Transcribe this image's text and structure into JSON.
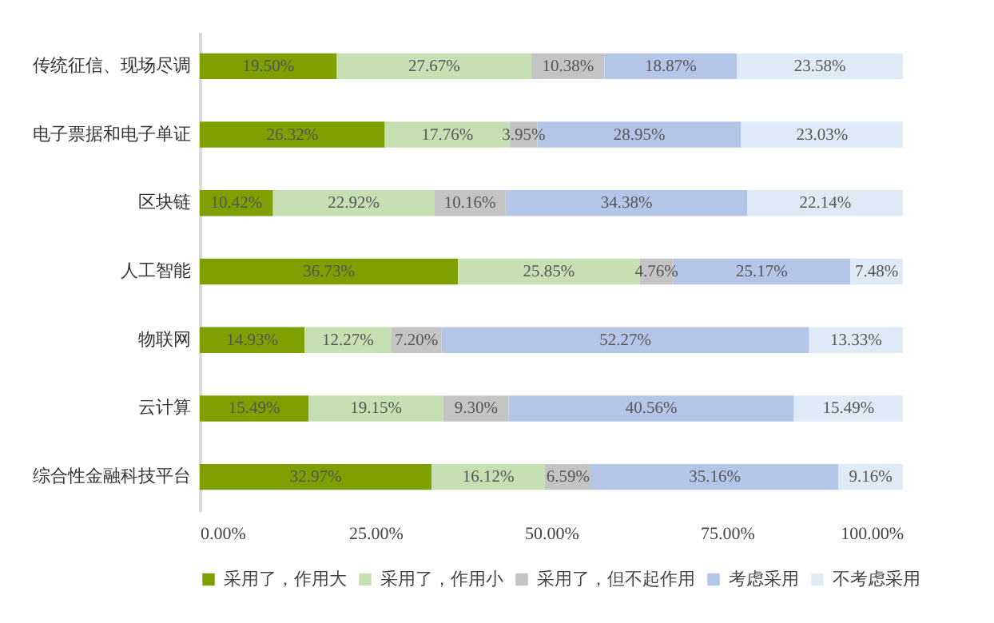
{
  "chart_data": {
    "type": "bar",
    "orientation": "horizontal",
    "stacked": true,
    "grid": false,
    "legend": "bottom",
    "categories": [
      "传统征信、现场尽调",
      "电子票据和电子单证",
      "区块链",
      "人工智能",
      "物联网",
      "云计算",
      "综合性金融科技平台"
    ],
    "xlim": [
      0,
      100
    ],
    "xticks": [
      {
        "value": 0,
        "label": "0.00%"
      },
      {
        "value": 25,
        "label": "25.00%"
      },
      {
        "value": 50,
        "label": "50.00%"
      },
      {
        "value": 75,
        "label": "75.00%"
      },
      {
        "value": 100,
        "label": "100.00%"
      }
    ],
    "series": [
      {
        "name": "采用了，作用大",
        "color": "#7f9f00",
        "values": [
          19.5,
          26.32,
          10.42,
          36.73,
          14.93,
          15.49,
          32.97
        ],
        "value_labels": [
          "19.50%",
          "26.32%",
          "10.42%",
          "36.73%",
          "14.93%",
          "15.49%",
          "32.97%"
        ]
      },
      {
        "name": "采用了，作用小",
        "color": "#c6e0b4",
        "values": [
          27.67,
          17.76,
          22.92,
          25.85,
          12.27,
          19.15,
          16.12
        ],
        "value_labels": [
          "27.67%",
          "17.76%",
          "22.92%",
          "25.85%",
          "12.27%",
          "19.15%",
          "16.12%"
        ]
      },
      {
        "name": "采用了，但不起作用",
        "color": "#c4c4c4",
        "values": [
          10.38,
          3.95,
          10.16,
          4.76,
          7.2,
          9.3,
          6.59
        ],
        "value_labels": [
          "10.38%",
          "3.95%",
          "10.16%",
          "4.76%",
          "7.20%",
          "9.30%",
          "6.59%"
        ]
      },
      {
        "name": "考虑采用",
        "color": "#b4c6e7",
        "values": [
          18.87,
          28.95,
          34.38,
          25.17,
          52.27,
          40.56,
          35.16
        ],
        "value_labels": [
          "18.87%",
          "28.95%",
          "34.38%",
          "25.17%",
          "52.27%",
          "40.56%",
          "35.16%"
        ]
      },
      {
        "name": "不考虑采用",
        "color": "#deebf7",
        "values": [
          23.58,
          23.03,
          22.14,
          7.48,
          13.33,
          15.49,
          9.16
        ],
        "value_labels": [
          "23.58%",
          "23.03%",
          "22.14%",
          "7.48%",
          "13.33%",
          "15.49%",
          "9.16%"
        ]
      }
    ]
  }
}
